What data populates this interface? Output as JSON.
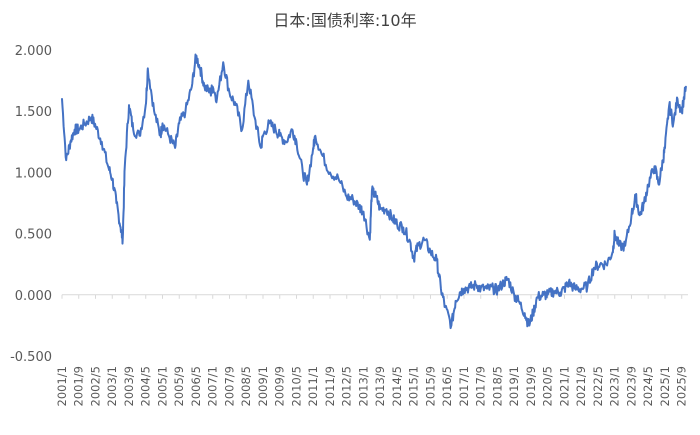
{
  "chart_data": {
    "type": "line",
    "title": "日本:国债利率:10年",
    "xlabel": "",
    "ylabel": "",
    "ylim": [
      -0.5,
      2.0
    ],
    "yticks": [
      "2.000",
      "1.500",
      "1.000",
      "0.500",
      "0.000",
      "-0.500"
    ],
    "ytick_values": [
      2.0,
      1.5,
      1.0,
      0.5,
      0.0,
      -0.5
    ],
    "grid": false,
    "legend": "none",
    "colors": {
      "line": "#4472C4",
      "axis": "#D9D9D9",
      "text": "#595959"
    },
    "x_tick_labels": [
      "2001/1",
      "2001/9",
      "2002/5",
      "2003/1",
      "2003/9",
      "2004/5",
      "2005/1",
      "2005/9",
      "2006/5",
      "2007/1",
      "2007/9",
      "2008/5",
      "2009/1",
      "2009/9",
      "2010/5",
      "2011/1",
      "2011/9",
      "2012/5",
      "2013/1",
      "2013/9",
      "2014/5",
      "2015/1",
      "2015/9",
      "2016/5",
      "2017/1",
      "2017/9",
      "2018/5",
      "2019/1",
      "2019/9",
      "2020/5",
      "2021/1",
      "2021/9",
      "2022/5",
      "2023/1",
      "2023/9",
      "2024/5",
      "2025/1",
      "2025/9"
    ],
    "series": [
      {
        "x": [
          "2001/1",
          "2001/3",
          "2001/5",
          "2001/7",
          "2001/9",
          "2001/12",
          "2002/3",
          "2002/5",
          "2002/8",
          "2002/11",
          "2003/1",
          "2003/3",
          "2003/5",
          "2003/6",
          "2003/7",
          "2003/9",
          "2003/11",
          "2004/2",
          "2004/5",
          "2004/6",
          "2004/9",
          "2004/12",
          "2005/1",
          "2005/4",
          "2005/7",
          "2005/9",
          "2005/12",
          "2006/3",
          "2006/5",
          "2006/7",
          "2006/9",
          "2006/12",
          "2007/1",
          "2007/3",
          "2007/6",
          "2007/9",
          "2007/12",
          "2008/3",
          "2008/6",
          "2008/9",
          "2008/12",
          "2009/1",
          "2009/4",
          "2009/7",
          "2009/9",
          "2009/12",
          "2010/3",
          "2010/5",
          "2010/8",
          "2010/10",
          "2011/1",
          "2011/2",
          "2011/5",
          "2011/9",
          "2012/1",
          "2012/5",
          "2012/8",
          "2012/11",
          "2013/1",
          "2013/4",
          "2013/5",
          "2013/7",
          "2013/9",
          "2013/12",
          "2014/3",
          "2014/5",
          "2014/8",
          "2014/11",
          "2015/1",
          "2015/3",
          "2015/6",
          "2015/9",
          "2015/12",
          "2016/2",
          "2016/4",
          "2016/7",
          "2016/9",
          "2016/11",
          "2017/1",
          "2017/4",
          "2017/7",
          "2017/9",
          "2017/12",
          "2018/3",
          "2018/5",
          "2018/8",
          "2018/10",
          "2019/1",
          "2019/3",
          "2019/6",
          "2019/8",
          "2019/10",
          "2019/12",
          "2020/3",
          "2020/5",
          "2020/8",
          "2020/11",
          "2021/1",
          "2021/3",
          "2021/6",
          "2021/9",
          "2021/12",
          "2022/3",
          "2022/6",
          "2022/9",
          "2022/12",
          "2023/1",
          "2023/3",
          "2023/6",
          "2023/9",
          "2023/11",
          "2024/1",
          "2024/3",
          "2024/5",
          "2024/8",
          "2024/10",
          "2024/12",
          "2025/1",
          "2025/3",
          "2025/5",
          "2025/7",
          "2025/9",
          "2025/11"
        ],
        "values": [
          1.6,
          1.1,
          1.25,
          1.35,
          1.35,
          1.4,
          1.45,
          1.38,
          1.25,
          1.05,
          0.95,
          0.75,
          0.55,
          0.45,
          1.05,
          1.55,
          1.35,
          1.3,
          1.55,
          1.85,
          1.5,
          1.3,
          1.4,
          1.3,
          1.2,
          1.4,
          1.5,
          1.7,
          1.95,
          1.85,
          1.7,
          1.65,
          1.7,
          1.6,
          1.9,
          1.65,
          1.55,
          1.35,
          1.75,
          1.45,
          1.2,
          1.3,
          1.4,
          1.35,
          1.3,
          1.25,
          1.35,
          1.25,
          1.0,
          0.9,
          1.2,
          1.3,
          1.15,
          1.0,
          0.95,
          0.8,
          0.78,
          0.72,
          0.68,
          0.45,
          0.85,
          0.8,
          0.7,
          0.7,
          0.62,
          0.58,
          0.55,
          0.45,
          0.3,
          0.4,
          0.45,
          0.35,
          0.28,
          0.05,
          -0.1,
          -0.25,
          -0.05,
          0.02,
          0.05,
          0.06,
          0.08,
          0.05,
          0.05,
          0.05,
          0.04,
          0.1,
          0.13,
          0.0,
          -0.05,
          -0.15,
          -0.25,
          -0.15,
          -0.02,
          0.0,
          0.0,
          0.03,
          0.02,
          0.05,
          0.1,
          0.05,
          0.05,
          0.07,
          0.22,
          0.25,
          0.25,
          0.35,
          0.5,
          0.4,
          0.4,
          0.65,
          0.8,
          0.65,
          0.75,
          0.9,
          1.05,
          0.9,
          1.1,
          1.2,
          1.55,
          1.4,
          1.6,
          1.5,
          1.7
        ]
      }
    ]
  }
}
